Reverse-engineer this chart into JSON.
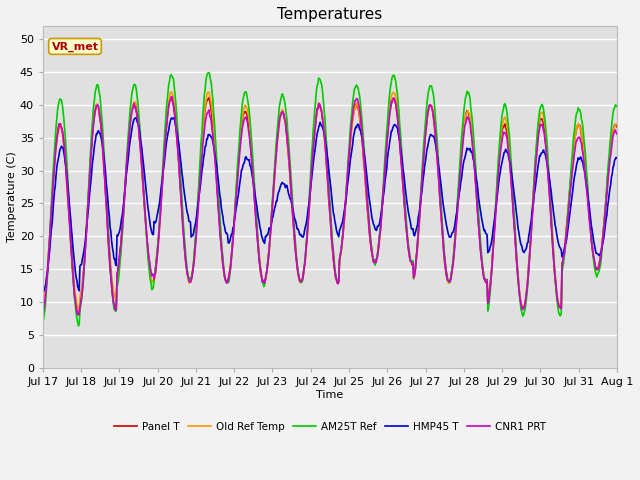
{
  "title": "Temperatures",
  "xlabel": "Time",
  "ylabel": "Temperature (C)",
  "ylim": [
    0,
    52
  ],
  "yticks": [
    0,
    5,
    10,
    15,
    20,
    25,
    30,
    35,
    40,
    45,
    50
  ],
  "xtick_labels": [
    "Jul 17",
    "Jul 18",
    "Jul 19",
    "Jul 20",
    "Jul 21",
    "Jul 22",
    "Jul 23",
    "Jul 24",
    "Jul 25",
    "Jul 26",
    "Jul 27",
    "Jul 28",
    "Jul 29",
    "Jul 30",
    "Jul 31",
    "Aug 1"
  ],
  "annotation_text": "VR_met",
  "annotation_color": "#aa0000",
  "annotation_bg": "#ffffcc",
  "annotation_border": "#cc9900",
  "series": [
    {
      "name": "Panel T",
      "color": "#cc0000",
      "lw": 1.2
    },
    {
      "name": "Old Ref Temp",
      "color": "#ff9900",
      "lw": 1.2
    },
    {
      "name": "AM25T Ref",
      "color": "#00cc00",
      "lw": 1.2
    },
    {
      "name": "HMP45 T",
      "color": "#0000cc",
      "lw": 1.2
    },
    {
      "name": "CNR1 PRT",
      "color": "#cc00cc",
      "lw": 1.2
    }
  ],
  "fig_facecolor": "#f2f2f2",
  "ax_facecolor": "#e0e0e0",
  "grid_color": "#ffffff",
  "title_fontsize": 11,
  "axis_fontsize": 8,
  "tick_fontsize": 8
}
